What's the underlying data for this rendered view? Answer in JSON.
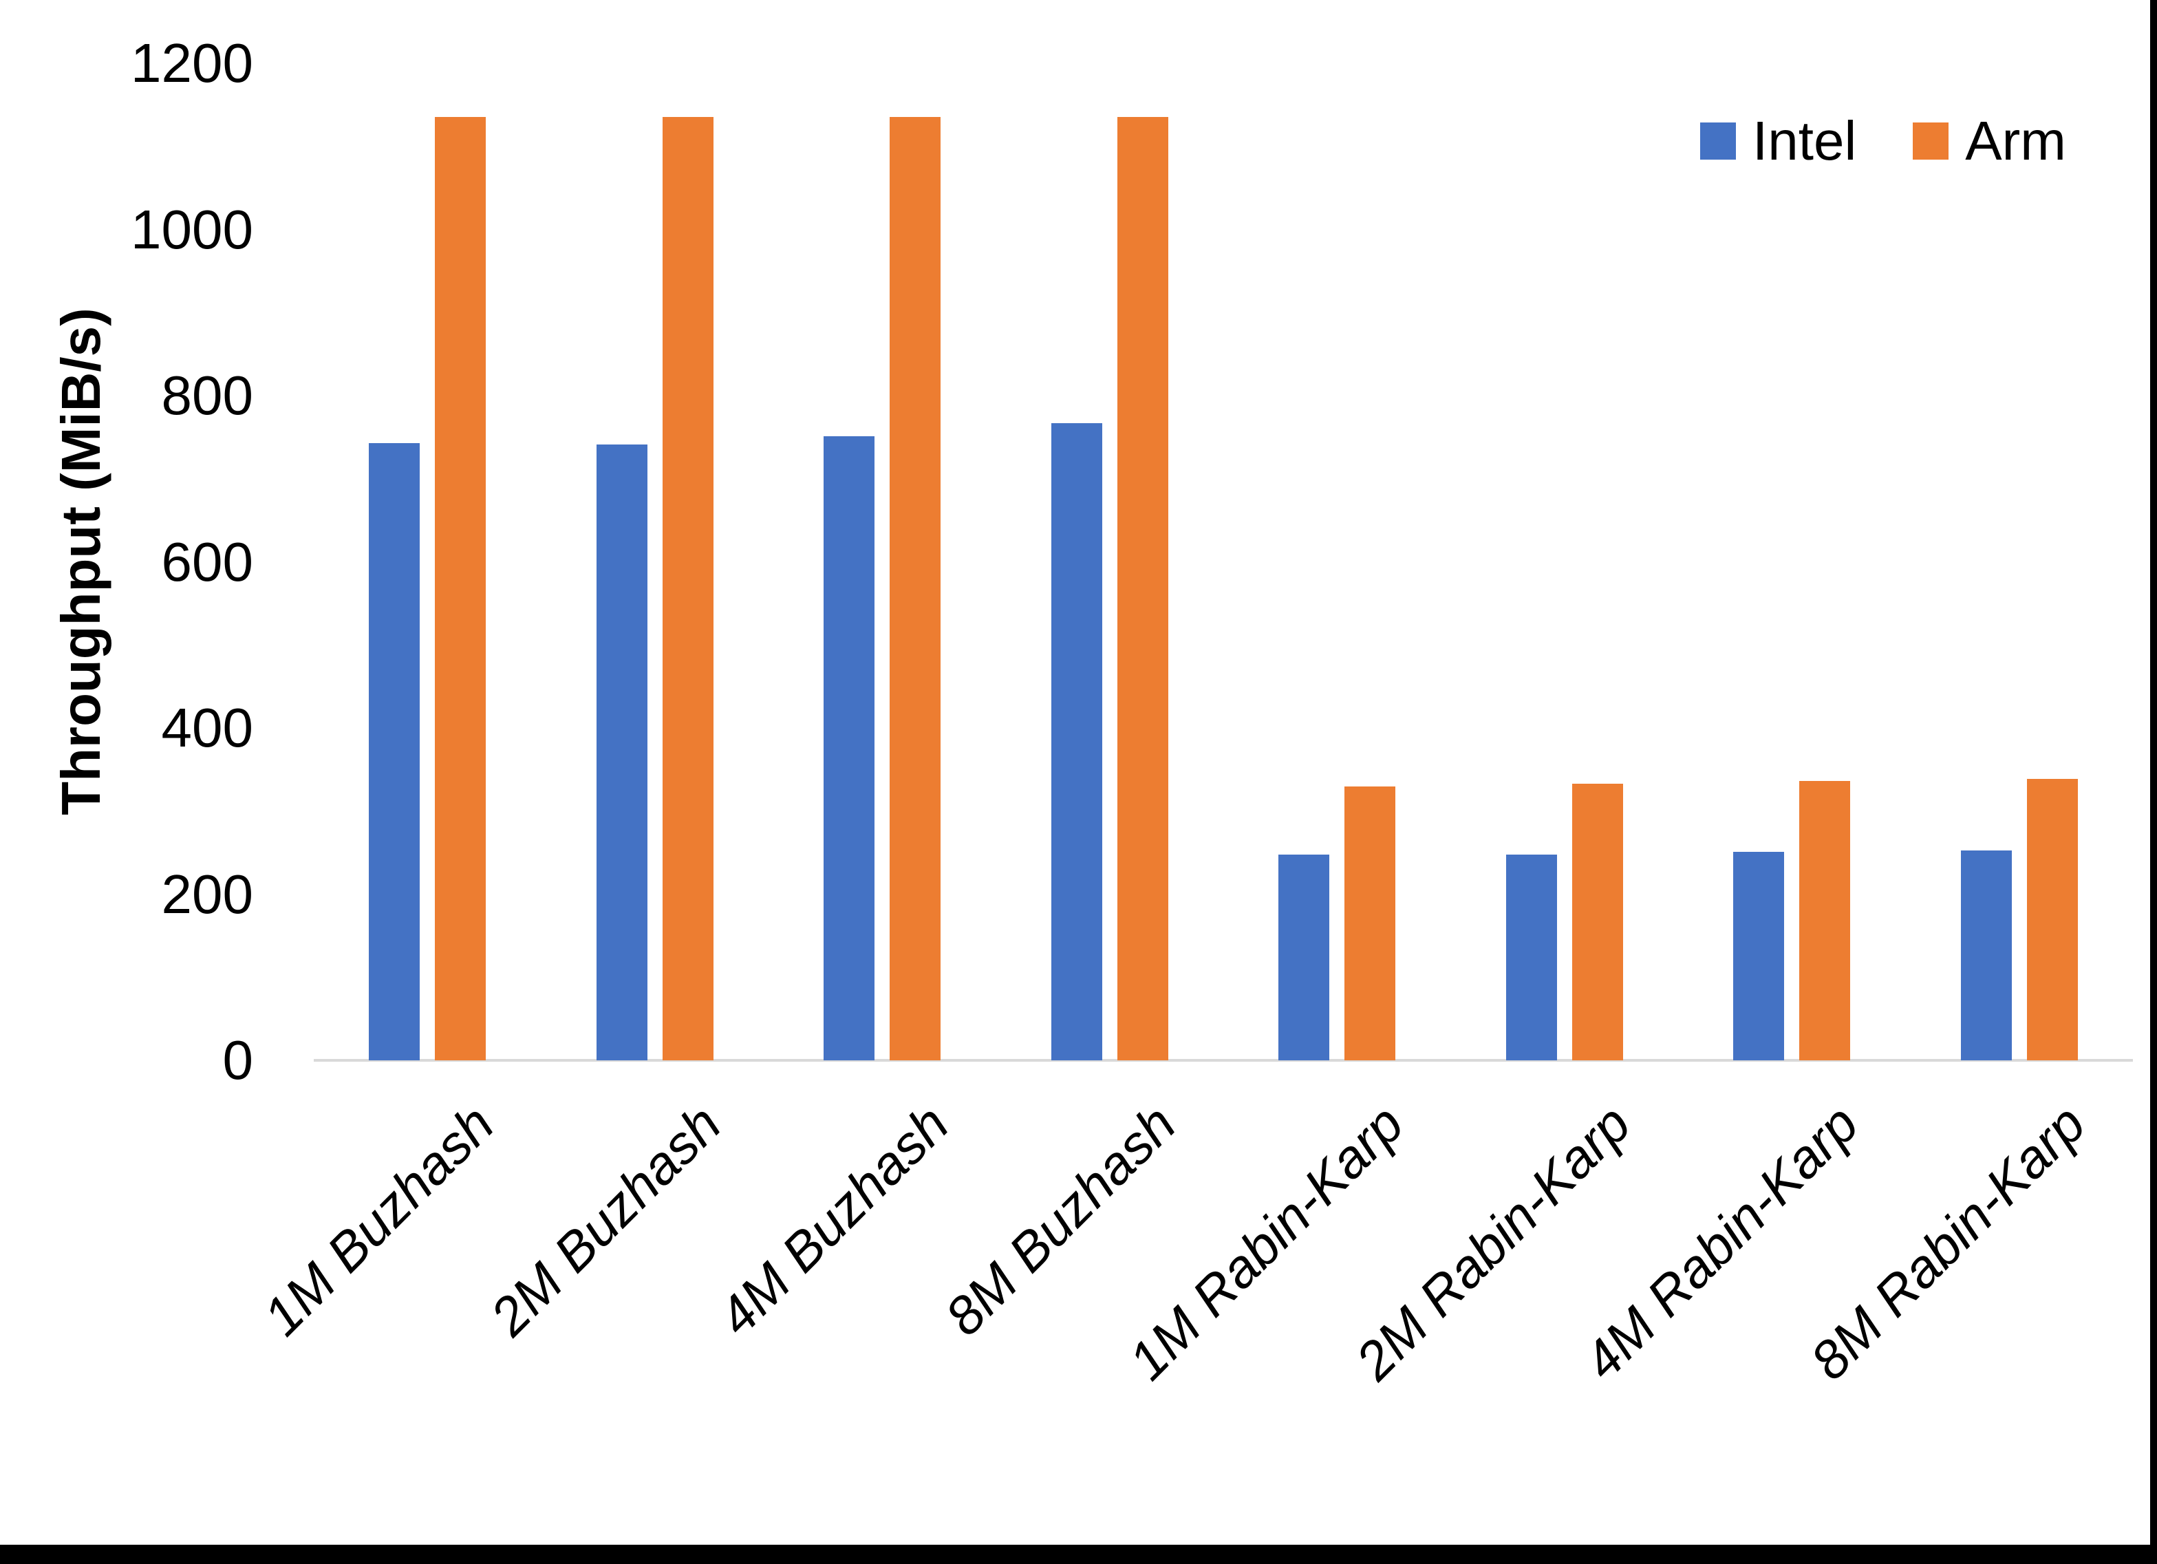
{
  "chart_data": {
    "type": "bar",
    "title": "",
    "xlabel": "",
    "ylabel": "Throughput (MiB/s)",
    "categories": [
      "1M Buzhash",
      "2M Buzhash",
      "4M Buzhash",
      "8M Buzhash",
      "1M Rabin-Karp",
      "2M Rabin-Karp",
      "4M Rabin-Karp",
      "8M Rabin-Karp"
    ],
    "series": [
      {
        "name": "Intel",
        "color": "#4472C4",
        "values": [
          743,
          741,
          751,
          767,
          248,
          248,
          251,
          253
        ]
      },
      {
        "name": "Arm",
        "color": "#ED7D31",
        "values": [
          1135,
          1135,
          1135,
          1135,
          330,
          333,
          336,
          339
        ]
      }
    ],
    "ylim": [
      0,
      1200
    ],
    "yticks": [
      0,
      200,
      400,
      600,
      800,
      1000,
      1200
    ],
    "grid": false,
    "legend_position": "top-right",
    "axis_line_color": "#D9D9D9",
    "text_color": "#000000",
    "background_color": "#FFFFFF"
  }
}
